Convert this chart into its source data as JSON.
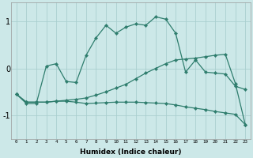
{
  "xlabel": "Humidex (Indice chaleur)",
  "x": [
    0,
    1,
    2,
    3,
    4,
    5,
    6,
    7,
    8,
    9,
    10,
    11,
    12,
    13,
    14,
    15,
    16,
    17,
    18,
    19,
    20,
    21,
    22,
    23
  ],
  "line1": [
    -0.55,
    -0.75,
    -0.75,
    0.05,
    0.1,
    -0.28,
    -0.3,
    0.28,
    0.65,
    0.92,
    0.75,
    0.88,
    0.95,
    0.92,
    1.1,
    1.05,
    0.75,
    -0.08,
    0.18,
    -0.08,
    -0.1,
    -0.12,
    -0.38,
    -0.45
  ],
  "line2": [
    -0.55,
    -0.72,
    -0.72,
    -0.72,
    -0.7,
    -0.68,
    -0.66,
    -0.63,
    -0.57,
    -0.5,
    -0.42,
    -0.34,
    -0.22,
    -0.1,
    0.0,
    0.1,
    0.18,
    0.2,
    0.22,
    0.25,
    0.28,
    0.3,
    -0.32,
    -1.2
  ],
  "line3": [
    -0.55,
    -0.72,
    -0.72,
    -0.72,
    -0.7,
    -0.7,
    -0.72,
    -0.75,
    -0.74,
    -0.73,
    -0.72,
    -0.72,
    -0.72,
    -0.73,
    -0.74,
    -0.75,
    -0.78,
    -0.82,
    -0.85,
    -0.88,
    -0.92,
    -0.95,
    -0.98,
    -1.2
  ],
  "line_color": "#2e7d6d",
  "bg_color": "#cce8e8",
  "grid_color": "#aacfcf",
  "ylim": [
    -1.5,
    1.4
  ],
  "yticks": [
    -1,
    0,
    1
  ],
  "xlim": [
    -0.5,
    23.5
  ]
}
